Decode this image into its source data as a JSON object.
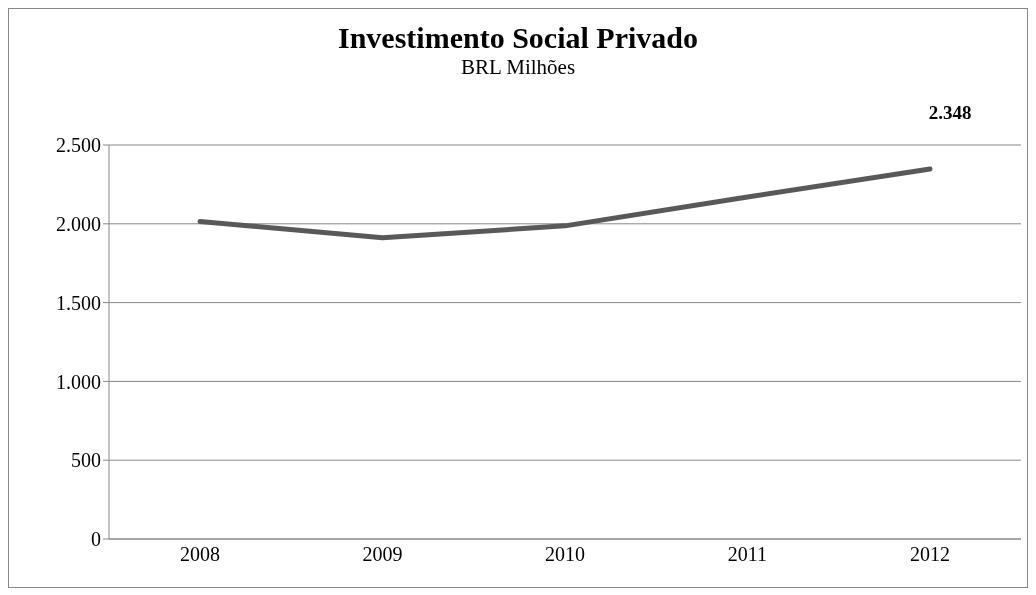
{
  "chart_data": {
    "type": "line",
    "title": "Investimento Social Privado",
    "subtitle": "BRL Milhões",
    "categories": [
      "2008",
      "2009",
      "2010",
      "2011",
      "2012"
    ],
    "series": [
      {
        "color": "#595959",
        "values": [
          2015,
          1911,
          1987,
          2170,
          2348
        ],
        "value_labels": [
          null,
          null,
          null,
          null,
          "2.348"
        ]
      }
    ],
    "ylim": [
      0,
      2500
    ],
    "yticks": [
      0,
      {
        "value": 500,
        "label": "500"
      },
      {
        "value": 1000,
        "label": "1.000"
      },
      {
        "value": 1500,
        "label": "1.500"
      },
      {
        "value": 2000,
        "label": "2.000"
      },
      {
        "value": 2500,
        "label": "2.500"
      }
    ],
    "grid": "y",
    "legend": false,
    "marker": "none",
    "line_style": "solid"
  }
}
